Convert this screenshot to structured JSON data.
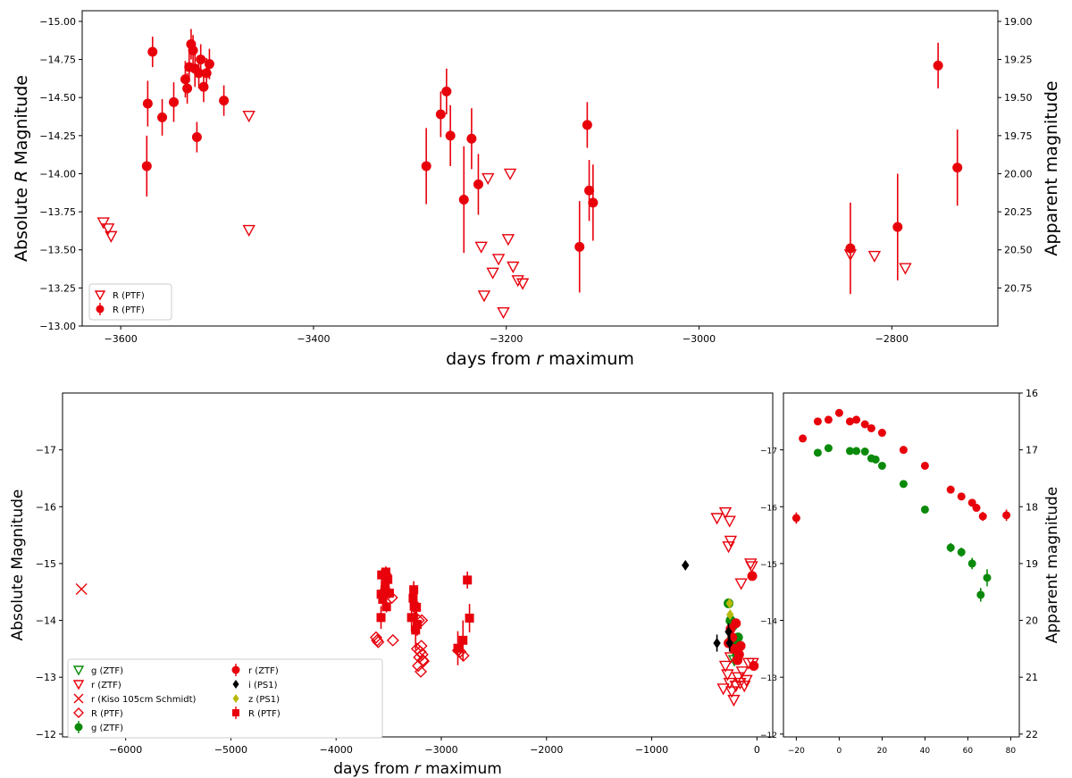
{
  "colors": {
    "red": "#e8000b",
    "green": "#0a8a0a",
    "black": "#000000",
    "yellow": "#b9b90a"
  },
  "chart_data": [
    {
      "type": "scatter",
      "title": "",
      "xlabel_pre": "days from ",
      "xlabel_italic": "r",
      "xlabel_post": " maximum",
      "ylabel_pre": "Absolute ",
      "ylabel_italic": "R",
      "ylabel_post": " Magnitude",
      "y2label": "Apparent magnitude",
      "xlim": [
        -3640,
        -2690
      ],
      "ylim": [
        -13.0,
        -15.07
      ],
      "y_inverted": true,
      "xticks": [
        -3600,
        -3400,
        -3200,
        -3000,
        -2800
      ],
      "xtick_labels": [
        "−3600",
        "−3400",
        "−3200",
        "−3000",
        "−2800"
      ],
      "yticks": [
        -15.0,
        -14.75,
        -14.5,
        -14.25,
        -14.0,
        -13.75,
        -13.5,
        -13.25,
        -13.0
      ],
      "ytick_labels": [
        "−15.00",
        "−14.75",
        "−14.50",
        "−14.25",
        "−14.00",
        "−13.75",
        "−13.50",
        "−13.25",
        "−13.00"
      ],
      "y2ticks": [
        19.0,
        19.25,
        19.5,
        19.75,
        20.0,
        20.25,
        20.5,
        20.75
      ],
      "y2tick_labels": [
        "19.00",
        "19.25",
        "19.50",
        "19.75",
        "20.00",
        "20.25",
        "20.50",
        "20.75"
      ],
      "y2_offset": 34.0,
      "legend_placement": "lower-left",
      "legend_cols": 1,
      "series": [
        {
          "name": "R (PTF)",
          "marker": "tri_down_open",
          "color": "#e8000b",
          "points": [
            [
              -3618,
              -13.68
            ],
            [
              -3613,
              -13.64
            ],
            [
              -3610,
              -13.59
            ],
            [
              -3467,
              -14.38
            ],
            [
              -3467,
              -13.63
            ],
            [
              -3226,
              -13.52
            ],
            [
              -3223,
              -13.2
            ],
            [
              -3219,
              -13.97
            ],
            [
              -3214,
              -13.35
            ],
            [
              -3208,
              -13.44
            ],
            [
              -3203,
              -13.09
            ],
            [
              -3198,
              -13.57
            ],
            [
              -3196,
              -14.0
            ],
            [
              -3193,
              -13.39
            ],
            [
              -3188,
              -13.3
            ],
            [
              -3183,
              -13.28
            ],
            [
              -2843,
              -13.47
            ],
            [
              -2818,
              -13.46
            ],
            [
              -2786,
              -13.38
            ]
          ]
        },
        {
          "name": "R (PTF)",
          "marker": "circle",
          "color": "#e8000b",
          "points": [
            [
              -3573,
              -14.05,
              0.2
            ],
            [
              -3572,
              -14.46,
              0.15
            ],
            [
              -3567,
              -14.8,
              0.1
            ],
            [
              -3557,
              -14.37,
              0.12
            ],
            [
              -3545,
              -14.47,
              0.13
            ],
            [
              -3533,
              -14.62,
              0.12
            ],
            [
              -3531,
              -14.56,
              0.1
            ],
            [
              -3529,
              -14.7,
              0.1
            ],
            [
              -3527,
              -14.85,
              0.1
            ],
            [
              -3525,
              -14.81,
              0.1
            ],
            [
              -3523,
              -14.69,
              0.12
            ],
            [
              -3521,
              -14.24,
              0.1
            ],
            [
              -3519,
              -14.66,
              0.1
            ],
            [
              -3517,
              -14.75,
              0.1
            ],
            [
              -3514,
              -14.57,
              0.1
            ],
            [
              -3511,
              -14.66,
              0.1
            ],
            [
              -3508,
              -14.72,
              0.1
            ],
            [
              -3493,
              -14.48,
              0.1
            ],
            [
              -3283,
              -14.05,
              0.25
            ],
            [
              -3268,
              -14.39,
              0.15
            ],
            [
              -3262,
              -14.54,
              0.15
            ],
            [
              -3258,
              -14.25,
              0.2
            ],
            [
              -3244,
              -13.83,
              0.35
            ],
            [
              -3236,
              -14.23,
              0.2
            ],
            [
              -3229,
              -13.93,
              0.2
            ],
            [
              -3124,
              -13.52,
              0.3
            ],
            [
              -3116,
              -14.32,
              0.15
            ],
            [
              -3114,
              -13.89,
              0.2
            ],
            [
              -3110,
              -13.81,
              0.25
            ],
            [
              -2843,
              -13.51,
              0.3
            ],
            [
              -2794,
              -13.65,
              0.35
            ],
            [
              -2752,
              -14.71,
              0.15
            ],
            [
              -2732,
              -14.04,
              0.25
            ]
          ]
        }
      ]
    },
    {
      "type": "scatter",
      "title": "",
      "xlabel_pre": "days from ",
      "xlabel_italic": "r",
      "xlabel_post": " maximum",
      "ylabel_pre": "Absolute Magnitude",
      "ylabel_italic": "",
      "ylabel_post": "",
      "xlim": [
        -6600,
        150
      ],
      "ylim": [
        -11.95,
        -18.0
      ],
      "y_inverted": true,
      "xticks": [
        -6000,
        -5000,
        -4000,
        -3000,
        -2000,
        -1000,
        0
      ],
      "xtick_labels": [
        "−6000",
        "−5000",
        "−4000",
        "−3000",
        "−2000",
        "−1000",
        "0"
      ],
      "yticks": [
        -17,
        -16,
        -15,
        -14,
        -13,
        -12
      ],
      "ytick_labels": [
        "−17",
        "−16",
        "−15",
        "−14",
        "−13",
        "−12"
      ],
      "legend_placement": "lower-left",
      "legend_cols": 2,
      "series": [
        {
          "name": "g (ZTF)",
          "marker": "tri_down_open",
          "color": "#0a8a0a",
          "points": [
            [
              -240,
              -13.9
            ],
            [
              -230,
              -13.6
            ],
            [
              -215,
              -13.3
            ]
          ]
        },
        {
          "name": "r (ZTF)",
          "marker": "tri_down_open",
          "color": "#e8000b",
          "points": [
            [
              -380,
              -15.8
            ],
            [
              -300,
              -15.9
            ],
            [
              -260,
              -15.75
            ],
            [
              -270,
              -15.3
            ],
            [
              -250,
              -15.4
            ],
            [
              -150,
              -14.65
            ],
            [
              -60,
              -15.0
            ],
            [
              -50,
              -14.95
            ],
            [
              -80,
              -13.25
            ],
            [
              -40,
              -13.25
            ],
            [
              -300,
              -13.2
            ],
            [
              -280,
              -13.05
            ],
            [
              -260,
              -12.9
            ],
            [
              -240,
              -12.75
            ],
            [
              -220,
              -12.6
            ],
            [
              -200,
              -12.85
            ],
            [
              -180,
              -13.0
            ],
            [
              -160,
              -12.9
            ],
            [
              -140,
              -13.1
            ],
            [
              -120,
              -12.85
            ],
            [
              -100,
              -12.95
            ],
            [
              -320,
              -12.8
            ],
            [
              -250,
              -13.35
            ]
          ]
        },
        {
          "name": "r (Kiso 105cm Schmidt)",
          "marker": "x",
          "color": "#e8000b",
          "points": [
            [
              -6420,
              -14.55
            ]
          ]
        },
        {
          "name": "R (PTF)",
          "marker": "diamond_open",
          "color": "#e8000b",
          "points": [
            [
              -3620,
              -13.7
            ],
            [
              -3610,
              -13.65
            ],
            [
              -3600,
              -13.62
            ],
            [
              -3470,
              -14.4
            ],
            [
              -3460,
              -13.65
            ],
            [
              -3230,
              -13.5
            ],
            [
              -3220,
              -13.2
            ],
            [
              -3215,
              -14.0
            ],
            [
              -3210,
              -13.35
            ],
            [
              -3200,
              -13.45
            ],
            [
              -3195,
              -13.1
            ],
            [
              -3190,
              -13.55
            ],
            [
              -3185,
              -14.0
            ],
            [
              -3180,
              -13.4
            ],
            [
              -3175,
              -13.3
            ],
            [
              -3170,
              -13.28
            ],
            [
              -2840,
              -13.47
            ],
            [
              -2820,
              -13.45
            ],
            [
              -2790,
              -13.38
            ]
          ]
        },
        {
          "name": "g (ZTF)",
          "marker": "circle",
          "color": "#0a8a0a",
          "points": [
            [
              -270,
              -14.3
            ],
            [
              -250,
              -14.0
            ],
            [
              -230,
              -13.9
            ],
            [
              -215,
              -13.6
            ],
            [
              -200,
              -13.5
            ],
            [
              -190,
              -13.4
            ],
            [
              -180,
              -13.7
            ]
          ]
        },
        {
          "name": "r (ZTF)",
          "marker": "circle",
          "color": "#e8000b",
          "points": [
            [
              -270,
              -13.6
            ],
            [
              -250,
              -13.85
            ],
            [
              -235,
              -13.7
            ],
            [
              -220,
              -13.5
            ],
            [
              -200,
              -13.95
            ],
            [
              -185,
              -13.3
            ],
            [
              -170,
              -13.4
            ],
            [
              -155,
              -13.55
            ],
            [
              -45,
              -14.78
            ],
            [
              -30,
              -13.2
            ]
          ]
        },
        {
          "name": "i (PS1)",
          "marker": "diamond",
          "color": "#000000",
          "points": [
            [
              -680,
              -14.97,
              0
            ],
            [
              -380,
              -13.6,
              0.15
            ],
            [
              -270,
              -13.8,
              0.15
            ],
            [
              -260,
              -13.6,
              0.15
            ]
          ]
        },
        {
          "name": "z (PS1)",
          "marker": "diamond",
          "color": "#b9b90a",
          "points": [
            [
              -260,
              -14.3
            ],
            [
              -255,
              -14.1
            ]
          ]
        },
        {
          "name": "R (PTF)",
          "marker": "square",
          "color": "#e8000b",
          "points": [
            [
              -3573,
              -14.05,
              0.2
            ],
            [
              -3572,
              -14.46,
              0.15
            ],
            [
              -3567,
              -14.8,
              0.1
            ],
            [
              -3557,
              -14.37,
              0.12
            ],
            [
              -3545,
              -14.47,
              0.13
            ],
            [
              -3533,
              -14.62,
              0.12
            ],
            [
              -3527,
              -14.85,
              0.1
            ],
            [
              -3521,
              -14.24,
              0.1
            ],
            [
              -3517,
              -14.75,
              0.1
            ],
            [
              -3508,
              -14.72,
              0.1
            ],
            [
              -3493,
              -14.48,
              0.1
            ],
            [
              -3283,
              -14.05,
              0.25
            ],
            [
              -3268,
              -14.39,
              0.15
            ],
            [
              -3262,
              -14.54,
              0.15
            ],
            [
              -3258,
              -14.25,
              0.2
            ],
            [
              -3244,
              -13.83,
              0.35
            ],
            [
              -3236,
              -14.23,
              0.2
            ],
            [
              -3229,
              -13.93,
              0.2
            ],
            [
              -2843,
              -13.51,
              0.3
            ],
            [
              -2794,
              -13.65,
              0.35
            ],
            [
              -2752,
              -14.71,
              0.15
            ],
            [
              -2732,
              -14.04,
              0.25
            ]
          ]
        }
      ]
    },
    {
      "type": "scatter",
      "title": "",
      "xlabel_pre": "",
      "xlabel_italic": "",
      "xlabel_post": "",
      "ylabel_pre": "",
      "ylabel_italic": "",
      "ylabel_post": "",
      "y2label": "Apparent magnitude",
      "xlim": [
        -26,
        84
      ],
      "ylim": [
        -11.95,
        -18.0
      ],
      "y_inverted": true,
      "xticks": [
        -20,
        0,
        20,
        40,
        60,
        80
      ],
      "xtick_labels": [
        "−20",
        "0",
        "20",
        "40",
        "60",
        "80"
      ],
      "yticks": [
        -17,
        -16,
        -15,
        -14,
        -13,
        -12
      ],
      "ytick_labels": [
        "−17",
        "−16",
        "−15",
        "−14",
        "−13",
        "−12"
      ],
      "y2ticks": [
        16,
        17,
        18,
        19,
        20,
        21,
        22
      ],
      "y2tick_labels": [
        "16",
        "17",
        "18",
        "19",
        "20",
        "21",
        "22"
      ],
      "y2_offset": 34.0,
      "legend_placement": "none",
      "series": [
        {
          "name": "r",
          "marker": "circle",
          "color": "#e8000b",
          "points": [
            [
              -20,
              -15.8,
              0.1
            ],
            [
              -17,
              -17.2,
              0
            ],
            [
              -10,
              -17.5,
              0
            ],
            [
              -5,
              -17.53,
              0
            ],
            [
              0,
              -17.65,
              0
            ],
            [
              5,
              -17.5,
              0
            ],
            [
              8,
              -17.53,
              0
            ],
            [
              12,
              -17.45,
              0
            ],
            [
              15,
              -17.38,
              0
            ],
            [
              20,
              -17.3,
              0
            ],
            [
              30,
              -17.0,
              0
            ],
            [
              40,
              -16.72,
              0
            ],
            [
              52,
              -16.3,
              0
            ],
            [
              57,
              -16.18,
              0
            ],
            [
              62,
              -16.07,
              0
            ],
            [
              64,
              -15.98,
              0
            ],
            [
              67,
              -15.83,
              0.08
            ],
            [
              78,
              -15.85,
              0.1
            ]
          ]
        },
        {
          "name": "g",
          "marker": "circle",
          "color": "#0a8a0a",
          "points": [
            [
              -10,
              -16.95,
              0
            ],
            [
              -5,
              -17.03,
              0
            ],
            [
              5,
              -16.98,
              0
            ],
            [
              8,
              -16.98,
              0
            ],
            [
              12,
              -16.97,
              0
            ],
            [
              15,
              -16.85,
              0
            ],
            [
              17,
              -16.83,
              0
            ],
            [
              20,
              -16.72,
              0
            ],
            [
              30,
              -16.4,
              0
            ],
            [
              40,
              -15.95,
              0.07
            ],
            [
              52,
              -15.28,
              0.08
            ],
            [
              57,
              -15.2,
              0.08
            ],
            [
              62,
              -15.0,
              0.1
            ],
            [
              66,
              -14.45,
              0.12
            ],
            [
              69,
              -14.75,
              0.15
            ]
          ]
        }
      ]
    }
  ]
}
